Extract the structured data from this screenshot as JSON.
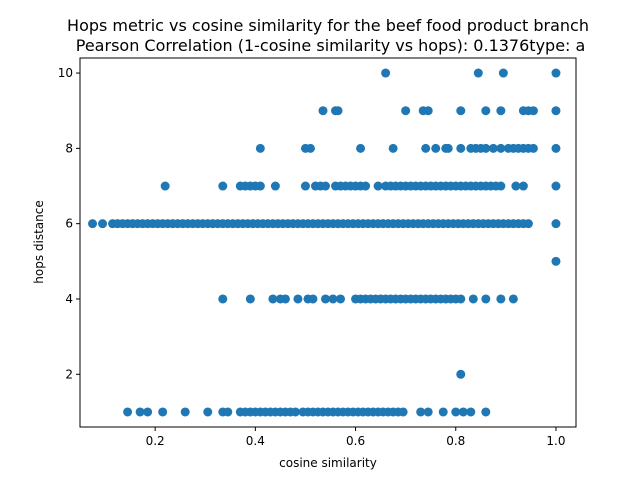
{
  "chart_data": {
    "type": "scatter",
    "title_line1": "Hops metric vs cosine similarity for the beef food product branch",
    "title_line2": " Pearson Correlation (1-cosine similarity vs hops): 0.1376type: a",
    "xlabel": "cosine similarity",
    "ylabel": "hops distance",
    "xlim": [
      0.05,
      1.04
    ],
    "ylim": [
      0.6,
      10.4
    ],
    "xticks": [
      0.2,
      0.4,
      0.6,
      0.8,
      1.0
    ],
    "xtick_labels": [
      "0.2",
      "0.4",
      "0.6",
      "0.8",
      "1.0"
    ],
    "yticks": [
      2,
      4,
      6,
      8,
      10
    ],
    "ytick_labels": [
      "2",
      "4",
      "6",
      "8",
      "10"
    ],
    "grid": false,
    "marker_color": "#1f77b4",
    "points": [
      {
        "x": 0.66,
        "y": 10
      },
      {
        "x": 0.845,
        "y": 10
      },
      {
        "x": 0.895,
        "y": 10
      },
      {
        "x": 1.0,
        "y": 10
      },
      {
        "x": 0.535,
        "y": 9
      },
      {
        "x": 0.56,
        "y": 9
      },
      {
        "x": 0.565,
        "y": 9
      },
      {
        "x": 0.7,
        "y": 9
      },
      {
        "x": 0.735,
        "y": 9
      },
      {
        "x": 0.745,
        "y": 9
      },
      {
        "x": 0.81,
        "y": 9
      },
      {
        "x": 0.86,
        "y": 9
      },
      {
        "x": 0.89,
        "y": 9
      },
      {
        "x": 0.935,
        "y": 9
      },
      {
        "x": 0.945,
        "y": 9
      },
      {
        "x": 0.955,
        "y": 9
      },
      {
        "x": 1.0,
        "y": 9
      },
      {
        "x": 0.41,
        "y": 8
      },
      {
        "x": 0.5,
        "y": 8
      },
      {
        "x": 0.51,
        "y": 8
      },
      {
        "x": 0.61,
        "y": 8
      },
      {
        "x": 0.675,
        "y": 8
      },
      {
        "x": 0.74,
        "y": 8
      },
      {
        "x": 0.76,
        "y": 8
      },
      {
        "x": 0.78,
        "y": 8
      },
      {
        "x": 0.785,
        "y": 8
      },
      {
        "x": 0.81,
        "y": 8
      },
      {
        "x": 0.83,
        "y": 8
      },
      {
        "x": 0.84,
        "y": 8
      },
      {
        "x": 0.85,
        "y": 8
      },
      {
        "x": 0.86,
        "y": 8
      },
      {
        "x": 0.875,
        "y": 8
      },
      {
        "x": 0.89,
        "y": 8
      },
      {
        "x": 0.905,
        "y": 8
      },
      {
        "x": 0.915,
        "y": 8
      },
      {
        "x": 0.925,
        "y": 8
      },
      {
        "x": 0.935,
        "y": 8
      },
      {
        "x": 0.945,
        "y": 8
      },
      {
        "x": 0.955,
        "y": 8
      },
      {
        "x": 1.0,
        "y": 8
      },
      {
        "x": 0.22,
        "y": 7
      },
      {
        "x": 0.335,
        "y": 7
      },
      {
        "x": 0.37,
        "y": 7
      },
      {
        "x": 0.38,
        "y": 7
      },
      {
        "x": 0.39,
        "y": 7
      },
      {
        "x": 0.4,
        "y": 7
      },
      {
        "x": 0.41,
        "y": 7
      },
      {
        "x": 0.44,
        "y": 7
      },
      {
        "x": 0.5,
        "y": 7
      },
      {
        "x": 0.52,
        "y": 7
      },
      {
        "x": 0.53,
        "y": 7
      },
      {
        "x": 0.54,
        "y": 7
      },
      {
        "x": 0.56,
        "y": 7
      },
      {
        "x": 0.57,
        "y": 7
      },
      {
        "x": 0.58,
        "y": 7
      },
      {
        "x": 0.59,
        "y": 7
      },
      {
        "x": 0.6,
        "y": 7
      },
      {
        "x": 0.61,
        "y": 7
      },
      {
        "x": 0.62,
        "y": 7
      },
      {
        "x": 0.645,
        "y": 7
      },
      {
        "x": 0.66,
        "y": 7
      },
      {
        "x": 0.67,
        "y": 7
      },
      {
        "x": 0.68,
        "y": 7
      },
      {
        "x": 0.69,
        "y": 7
      },
      {
        "x": 0.7,
        "y": 7
      },
      {
        "x": 0.71,
        "y": 7
      },
      {
        "x": 0.72,
        "y": 7
      },
      {
        "x": 0.73,
        "y": 7
      },
      {
        "x": 0.74,
        "y": 7
      },
      {
        "x": 0.75,
        "y": 7
      },
      {
        "x": 0.76,
        "y": 7
      },
      {
        "x": 0.77,
        "y": 7
      },
      {
        "x": 0.78,
        "y": 7
      },
      {
        "x": 0.79,
        "y": 7
      },
      {
        "x": 0.8,
        "y": 7
      },
      {
        "x": 0.81,
        "y": 7
      },
      {
        "x": 0.82,
        "y": 7
      },
      {
        "x": 0.83,
        "y": 7
      },
      {
        "x": 0.84,
        "y": 7
      },
      {
        "x": 0.85,
        "y": 7
      },
      {
        "x": 0.86,
        "y": 7
      },
      {
        "x": 0.87,
        "y": 7
      },
      {
        "x": 0.88,
        "y": 7
      },
      {
        "x": 0.89,
        "y": 7
      },
      {
        "x": 0.92,
        "y": 7
      },
      {
        "x": 0.935,
        "y": 7
      },
      {
        "x": 1.0,
        "y": 7
      },
      {
        "x": 0.075,
        "y": 6
      },
      {
        "x": 0.095,
        "y": 6
      },
      {
        "x": 0.115,
        "y": 6
      },
      {
        "x": 0.125,
        "y": 6
      },
      {
        "x": 0.135,
        "y": 6
      },
      {
        "x": 0.145,
        "y": 6
      },
      {
        "x": 0.155,
        "y": 6
      },
      {
        "x": 0.165,
        "y": 6
      },
      {
        "x": 0.175,
        "y": 6
      },
      {
        "x": 0.185,
        "y": 6
      },
      {
        "x": 0.195,
        "y": 6
      },
      {
        "x": 0.205,
        "y": 6
      },
      {
        "x": 0.215,
        "y": 6
      },
      {
        "x": 0.225,
        "y": 6
      },
      {
        "x": 0.235,
        "y": 6
      },
      {
        "x": 0.245,
        "y": 6
      },
      {
        "x": 0.255,
        "y": 6
      },
      {
        "x": 0.265,
        "y": 6
      },
      {
        "x": 0.275,
        "y": 6
      },
      {
        "x": 0.285,
        "y": 6
      },
      {
        "x": 0.295,
        "y": 6
      },
      {
        "x": 0.305,
        "y": 6
      },
      {
        "x": 0.315,
        "y": 6
      },
      {
        "x": 0.325,
        "y": 6
      },
      {
        "x": 0.335,
        "y": 6
      },
      {
        "x": 0.345,
        "y": 6
      },
      {
        "x": 0.355,
        "y": 6
      },
      {
        "x": 0.365,
        "y": 6
      },
      {
        "x": 0.375,
        "y": 6
      },
      {
        "x": 0.385,
        "y": 6
      },
      {
        "x": 0.395,
        "y": 6
      },
      {
        "x": 0.405,
        "y": 6
      },
      {
        "x": 0.415,
        "y": 6
      },
      {
        "x": 0.425,
        "y": 6
      },
      {
        "x": 0.435,
        "y": 6
      },
      {
        "x": 0.445,
        "y": 6
      },
      {
        "x": 0.455,
        "y": 6
      },
      {
        "x": 0.465,
        "y": 6
      },
      {
        "x": 0.475,
        "y": 6
      },
      {
        "x": 0.485,
        "y": 6
      },
      {
        "x": 0.495,
        "y": 6
      },
      {
        "x": 0.505,
        "y": 6
      },
      {
        "x": 0.515,
        "y": 6
      },
      {
        "x": 0.525,
        "y": 6
      },
      {
        "x": 0.535,
        "y": 6
      },
      {
        "x": 0.545,
        "y": 6
      },
      {
        "x": 0.555,
        "y": 6
      },
      {
        "x": 0.565,
        "y": 6
      },
      {
        "x": 0.575,
        "y": 6
      },
      {
        "x": 0.585,
        "y": 6
      },
      {
        "x": 0.595,
        "y": 6
      },
      {
        "x": 0.605,
        "y": 6
      },
      {
        "x": 0.615,
        "y": 6
      },
      {
        "x": 0.625,
        "y": 6
      },
      {
        "x": 0.635,
        "y": 6
      },
      {
        "x": 0.645,
        "y": 6
      },
      {
        "x": 0.655,
        "y": 6
      },
      {
        "x": 0.665,
        "y": 6
      },
      {
        "x": 0.675,
        "y": 6
      },
      {
        "x": 0.685,
        "y": 6
      },
      {
        "x": 0.695,
        "y": 6
      },
      {
        "x": 0.705,
        "y": 6
      },
      {
        "x": 0.715,
        "y": 6
      },
      {
        "x": 0.725,
        "y": 6
      },
      {
        "x": 0.735,
        "y": 6
      },
      {
        "x": 0.745,
        "y": 6
      },
      {
        "x": 0.755,
        "y": 6
      },
      {
        "x": 0.765,
        "y": 6
      },
      {
        "x": 0.775,
        "y": 6
      },
      {
        "x": 0.785,
        "y": 6
      },
      {
        "x": 0.795,
        "y": 6
      },
      {
        "x": 0.805,
        "y": 6
      },
      {
        "x": 0.815,
        "y": 6
      },
      {
        "x": 0.825,
        "y": 6
      },
      {
        "x": 0.835,
        "y": 6
      },
      {
        "x": 0.845,
        "y": 6
      },
      {
        "x": 0.855,
        "y": 6
      },
      {
        "x": 0.865,
        "y": 6
      },
      {
        "x": 0.875,
        "y": 6
      },
      {
        "x": 0.885,
        "y": 6
      },
      {
        "x": 0.895,
        "y": 6
      },
      {
        "x": 0.905,
        "y": 6
      },
      {
        "x": 0.915,
        "y": 6
      },
      {
        "x": 0.925,
        "y": 6
      },
      {
        "x": 0.935,
        "y": 6
      },
      {
        "x": 0.945,
        "y": 6
      },
      {
        "x": 1.0,
        "y": 6
      },
      {
        "x": 1.0,
        "y": 5
      },
      {
        "x": 0.335,
        "y": 4
      },
      {
        "x": 0.39,
        "y": 4
      },
      {
        "x": 0.435,
        "y": 4
      },
      {
        "x": 0.45,
        "y": 4
      },
      {
        "x": 0.46,
        "y": 4
      },
      {
        "x": 0.485,
        "y": 4
      },
      {
        "x": 0.505,
        "y": 4
      },
      {
        "x": 0.515,
        "y": 4
      },
      {
        "x": 0.54,
        "y": 4
      },
      {
        "x": 0.555,
        "y": 4
      },
      {
        "x": 0.57,
        "y": 4
      },
      {
        "x": 0.6,
        "y": 4
      },
      {
        "x": 0.61,
        "y": 4
      },
      {
        "x": 0.62,
        "y": 4
      },
      {
        "x": 0.63,
        "y": 4
      },
      {
        "x": 0.64,
        "y": 4
      },
      {
        "x": 0.65,
        "y": 4
      },
      {
        "x": 0.66,
        "y": 4
      },
      {
        "x": 0.67,
        "y": 4
      },
      {
        "x": 0.68,
        "y": 4
      },
      {
        "x": 0.69,
        "y": 4
      },
      {
        "x": 0.7,
        "y": 4
      },
      {
        "x": 0.71,
        "y": 4
      },
      {
        "x": 0.72,
        "y": 4
      },
      {
        "x": 0.73,
        "y": 4
      },
      {
        "x": 0.74,
        "y": 4
      },
      {
        "x": 0.75,
        "y": 4
      },
      {
        "x": 0.76,
        "y": 4
      },
      {
        "x": 0.77,
        "y": 4
      },
      {
        "x": 0.78,
        "y": 4
      },
      {
        "x": 0.79,
        "y": 4
      },
      {
        "x": 0.8,
        "y": 4
      },
      {
        "x": 0.81,
        "y": 4
      },
      {
        "x": 0.835,
        "y": 4
      },
      {
        "x": 0.86,
        "y": 4
      },
      {
        "x": 0.89,
        "y": 4
      },
      {
        "x": 0.915,
        "y": 4
      },
      {
        "x": 0.81,
        "y": 2
      },
      {
        "x": 0.145,
        "y": 1
      },
      {
        "x": 0.17,
        "y": 1
      },
      {
        "x": 0.185,
        "y": 1
      },
      {
        "x": 0.215,
        "y": 1
      },
      {
        "x": 0.26,
        "y": 1
      },
      {
        "x": 0.305,
        "y": 1
      },
      {
        "x": 0.335,
        "y": 1
      },
      {
        "x": 0.345,
        "y": 1
      },
      {
        "x": 0.37,
        "y": 1
      },
      {
        "x": 0.38,
        "y": 1
      },
      {
        "x": 0.39,
        "y": 1
      },
      {
        "x": 0.4,
        "y": 1
      },
      {
        "x": 0.41,
        "y": 1
      },
      {
        "x": 0.42,
        "y": 1
      },
      {
        "x": 0.43,
        "y": 1
      },
      {
        "x": 0.44,
        "y": 1
      },
      {
        "x": 0.45,
        "y": 1
      },
      {
        "x": 0.46,
        "y": 1
      },
      {
        "x": 0.47,
        "y": 1
      },
      {
        "x": 0.48,
        "y": 1
      },
      {
        "x": 0.495,
        "y": 1
      },
      {
        "x": 0.505,
        "y": 1
      },
      {
        "x": 0.515,
        "y": 1
      },
      {
        "x": 0.525,
        "y": 1
      },
      {
        "x": 0.535,
        "y": 1
      },
      {
        "x": 0.545,
        "y": 1
      },
      {
        "x": 0.555,
        "y": 1
      },
      {
        "x": 0.565,
        "y": 1
      },
      {
        "x": 0.575,
        "y": 1
      },
      {
        "x": 0.585,
        "y": 1
      },
      {
        "x": 0.595,
        "y": 1
      },
      {
        "x": 0.605,
        "y": 1
      },
      {
        "x": 0.615,
        "y": 1
      },
      {
        "x": 0.625,
        "y": 1
      },
      {
        "x": 0.635,
        "y": 1
      },
      {
        "x": 0.645,
        "y": 1
      },
      {
        "x": 0.655,
        "y": 1
      },
      {
        "x": 0.665,
        "y": 1
      },
      {
        "x": 0.675,
        "y": 1
      },
      {
        "x": 0.685,
        "y": 1
      },
      {
        "x": 0.695,
        "y": 1
      },
      {
        "x": 0.73,
        "y": 1
      },
      {
        "x": 0.745,
        "y": 1
      },
      {
        "x": 0.775,
        "y": 1
      },
      {
        "x": 0.8,
        "y": 1
      },
      {
        "x": 0.815,
        "y": 1
      },
      {
        "x": 0.83,
        "y": 1
      },
      {
        "x": 0.86,
        "y": 1
      }
    ]
  }
}
